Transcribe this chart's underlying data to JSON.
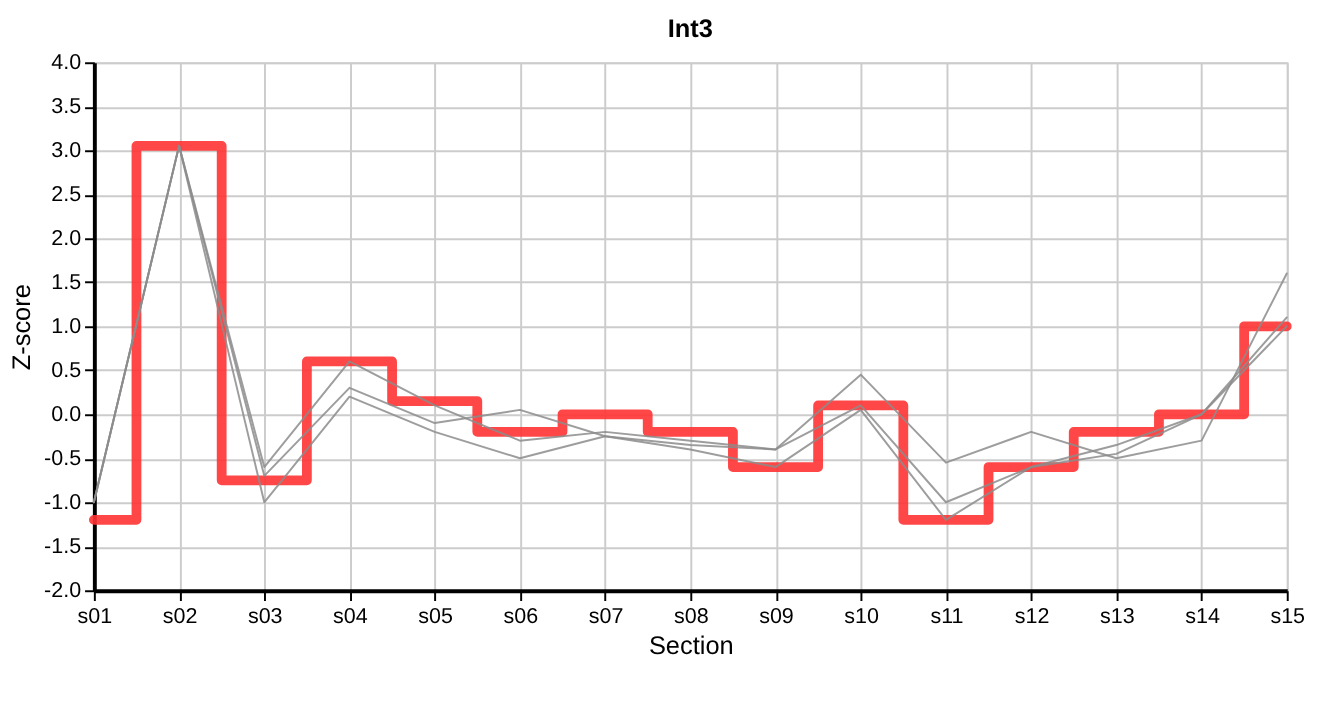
{
  "chart_data": {
    "type": "line",
    "title": "Int3",
    "xlabel": "Section",
    "ylabel": "Z-score",
    "categories": [
      "s01",
      "s02",
      "s03",
      "s04",
      "s05",
      "s06",
      "s07",
      "s08",
      "s09",
      "s10",
      "s11",
      "s12",
      "s13",
      "s14",
      "s15"
    ],
    "series": [
      {
        "type": "step",
        "color": "#ff3333",
        "values": [
          -1.2,
          3.05,
          -0.75,
          0.6,
          0.15,
          -0.2,
          0.0,
          -0.2,
          -0.6,
          0.1,
          -1.2,
          -0.6,
          -0.2,
          0.0,
          1.0
        ]
      },
      {
        "color": "#8c8c8c",
        "values": [
          -1.0,
          3.05,
          -0.6,
          0.6,
          0.1,
          -0.3,
          -0.2,
          -0.3,
          -0.4,
          0.45,
          -0.55,
          -0.2,
          -0.5,
          -0.3,
          1.6
        ]
      },
      {
        "color": "#8c8c8c",
        "values": [
          -1.0,
          3.05,
          -0.7,
          0.3,
          -0.1,
          0.05,
          -0.25,
          -0.35,
          -0.4,
          0.1,
          -1.0,
          -0.6,
          -0.35,
          0.0,
          1.1
        ]
      },
      {
        "color": "#8c8c8c",
        "values": [
          -1.0,
          3.05,
          -1.0,
          0.2,
          -0.2,
          -0.5,
          -0.25,
          -0.4,
          -0.6,
          0.05,
          -1.2,
          -0.6,
          -0.45,
          0.0,
          1.0
        ]
      }
    ],
    "ylim": [
      -2.0,
      4.0
    ],
    "yticks": [
      {
        "value": -2,
        "label": "-2.0"
      },
      {
        "value": -1.5,
        "label": "-1.5"
      },
      {
        "value": -1,
        "label": "-1.0"
      },
      {
        "value": -0.5,
        "label": "-0.5"
      },
      {
        "value": 0,
        "label": "0.0"
      },
      {
        "value": 0.5,
        "label": "0.5"
      },
      {
        "value": 1,
        "label": "1.0"
      },
      {
        "value": 1.5,
        "label": "1.5"
      },
      {
        "value": 2,
        "label": "2.0"
      },
      {
        "value": 2.5,
        "label": "2.5"
      },
      {
        "value": 3,
        "label": "3.0"
      },
      {
        "value": 3.5,
        "label": "3.5"
      },
      {
        "value": 4,
        "label": "4.0"
      }
    ],
    "grid": true
  }
}
